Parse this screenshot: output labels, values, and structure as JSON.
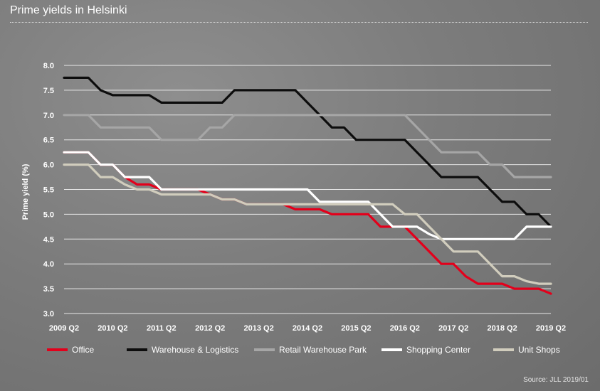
{
  "title": "Prime yields in Helsinki",
  "source": "Source: JLL 2019/01",
  "chart_data": {
    "type": "line",
    "title": "Prime yields in Helsinki",
    "ylabel": "Prime yield (%)",
    "xlabel": "",
    "ylim": [
      3.0,
      8.0
    ],
    "yticks": [
      "3.0",
      "3.5",
      "4.0",
      "4.5",
      "5.0",
      "5.5",
      "6.0",
      "6.5",
      "7.0",
      "7.5",
      "8.0"
    ],
    "x_tick_labels": [
      "2009 Q2",
      "2010 Q2",
      "2011 Q2",
      "2012 Q2",
      "2013 Q2",
      "2014 Q2",
      "2015 Q2",
      "2016 Q2",
      "2017 Q2",
      "2018 Q2",
      "2019 Q2"
    ],
    "x": [
      "2009 Q2",
      "2009 Q3",
      "2009 Q4",
      "2010 Q1",
      "2010 Q2",
      "2010 Q3",
      "2010 Q4",
      "2011 Q1",
      "2011 Q2",
      "2011 Q3",
      "2011 Q4",
      "2012 Q1",
      "2012 Q2",
      "2012 Q3",
      "2012 Q4",
      "2013 Q1",
      "2013 Q2",
      "2013 Q3",
      "2013 Q4",
      "2014 Q1",
      "2014 Q2",
      "2014 Q3",
      "2014 Q4",
      "2015 Q1",
      "2015 Q2",
      "2015 Q3",
      "2015 Q4",
      "2016 Q1",
      "2016 Q2",
      "2016 Q3",
      "2016 Q4",
      "2017 Q1",
      "2017 Q2",
      "2017 Q3",
      "2017 Q4",
      "2018 Q1",
      "2018 Q2",
      "2018 Q3",
      "2018 Q4",
      "2019 Q1",
      "2019 Q2"
    ],
    "grid": true,
    "legend_placement": "bottom",
    "series": [
      {
        "name": "Office",
        "color": "#e3001b",
        "values": [
          6.25,
          6.25,
          6.25,
          6.0,
          6.0,
          5.75,
          5.6,
          5.6,
          5.5,
          5.5,
          5.5,
          5.5,
          5.4,
          5.3,
          5.3,
          5.2,
          5.2,
          5.2,
          5.2,
          5.1,
          5.1,
          5.1,
          5.0,
          5.0,
          5.0,
          5.0,
          4.75,
          4.75,
          4.75,
          4.5,
          4.25,
          4.0,
          4.0,
          3.75,
          3.6,
          3.6,
          3.6,
          3.5,
          3.5,
          3.5,
          3.4
        ]
      },
      {
        "name": "Warehouse & Logistics",
        "color": "#0d0d0d",
        "values": [
          7.75,
          7.75,
          7.75,
          7.5,
          7.4,
          7.4,
          7.4,
          7.4,
          7.25,
          7.25,
          7.25,
          7.25,
          7.25,
          7.25,
          7.5,
          7.5,
          7.5,
          7.5,
          7.5,
          7.5,
          7.25,
          7.0,
          6.75,
          6.75,
          6.5,
          6.5,
          6.5,
          6.5,
          6.5,
          6.25,
          6.0,
          5.75,
          5.75,
          5.75,
          5.75,
          5.5,
          5.25,
          5.25,
          5.0,
          5.0,
          4.75
        ]
      },
      {
        "name": "Retail Warehouse Park",
        "color": "#a6a6a6",
        "values": [
          7.0,
          7.0,
          7.0,
          6.75,
          6.75,
          6.75,
          6.75,
          6.75,
          6.5,
          6.5,
          6.5,
          6.5,
          6.75,
          6.75,
          7.0,
          7.0,
          7.0,
          7.0,
          7.0,
          7.0,
          7.0,
          7.0,
          7.0,
          7.0,
          7.0,
          7.0,
          7.0,
          7.0,
          7.0,
          6.75,
          6.5,
          6.25,
          6.25,
          6.25,
          6.25,
          6.0,
          6.0,
          5.75,
          5.75,
          5.75,
          5.75
        ]
      },
      {
        "name": "Shopping Center",
        "color": "#ffffff",
        "values": [
          6.25,
          6.25,
          6.25,
          6.0,
          6.0,
          5.75,
          5.75,
          5.75,
          5.5,
          5.5,
          5.5,
          5.5,
          5.5,
          5.5,
          5.5,
          5.5,
          5.5,
          5.5,
          5.5,
          5.5,
          5.5,
          5.25,
          5.25,
          5.25,
          5.25,
          5.25,
          5.0,
          4.75,
          4.75,
          4.75,
          4.6,
          4.5,
          4.5,
          4.5,
          4.5,
          4.5,
          4.5,
          4.5,
          4.75,
          4.75,
          4.75
        ]
      },
      {
        "name": "Unit Shops",
        "color": "#d1cdbd",
        "values": [
          6.0,
          6.0,
          6.0,
          5.75,
          5.75,
          5.6,
          5.5,
          5.5,
          5.4,
          5.4,
          5.4,
          5.4,
          5.4,
          5.3,
          5.3,
          5.2,
          5.2,
          5.2,
          5.2,
          5.2,
          5.2,
          5.2,
          5.2,
          5.2,
          5.2,
          5.2,
          5.2,
          5.2,
          5.0,
          5.0,
          4.75,
          4.5,
          4.25,
          4.25,
          4.25,
          4.0,
          3.75,
          3.75,
          3.65,
          3.6,
          3.6
        ]
      }
    ]
  }
}
